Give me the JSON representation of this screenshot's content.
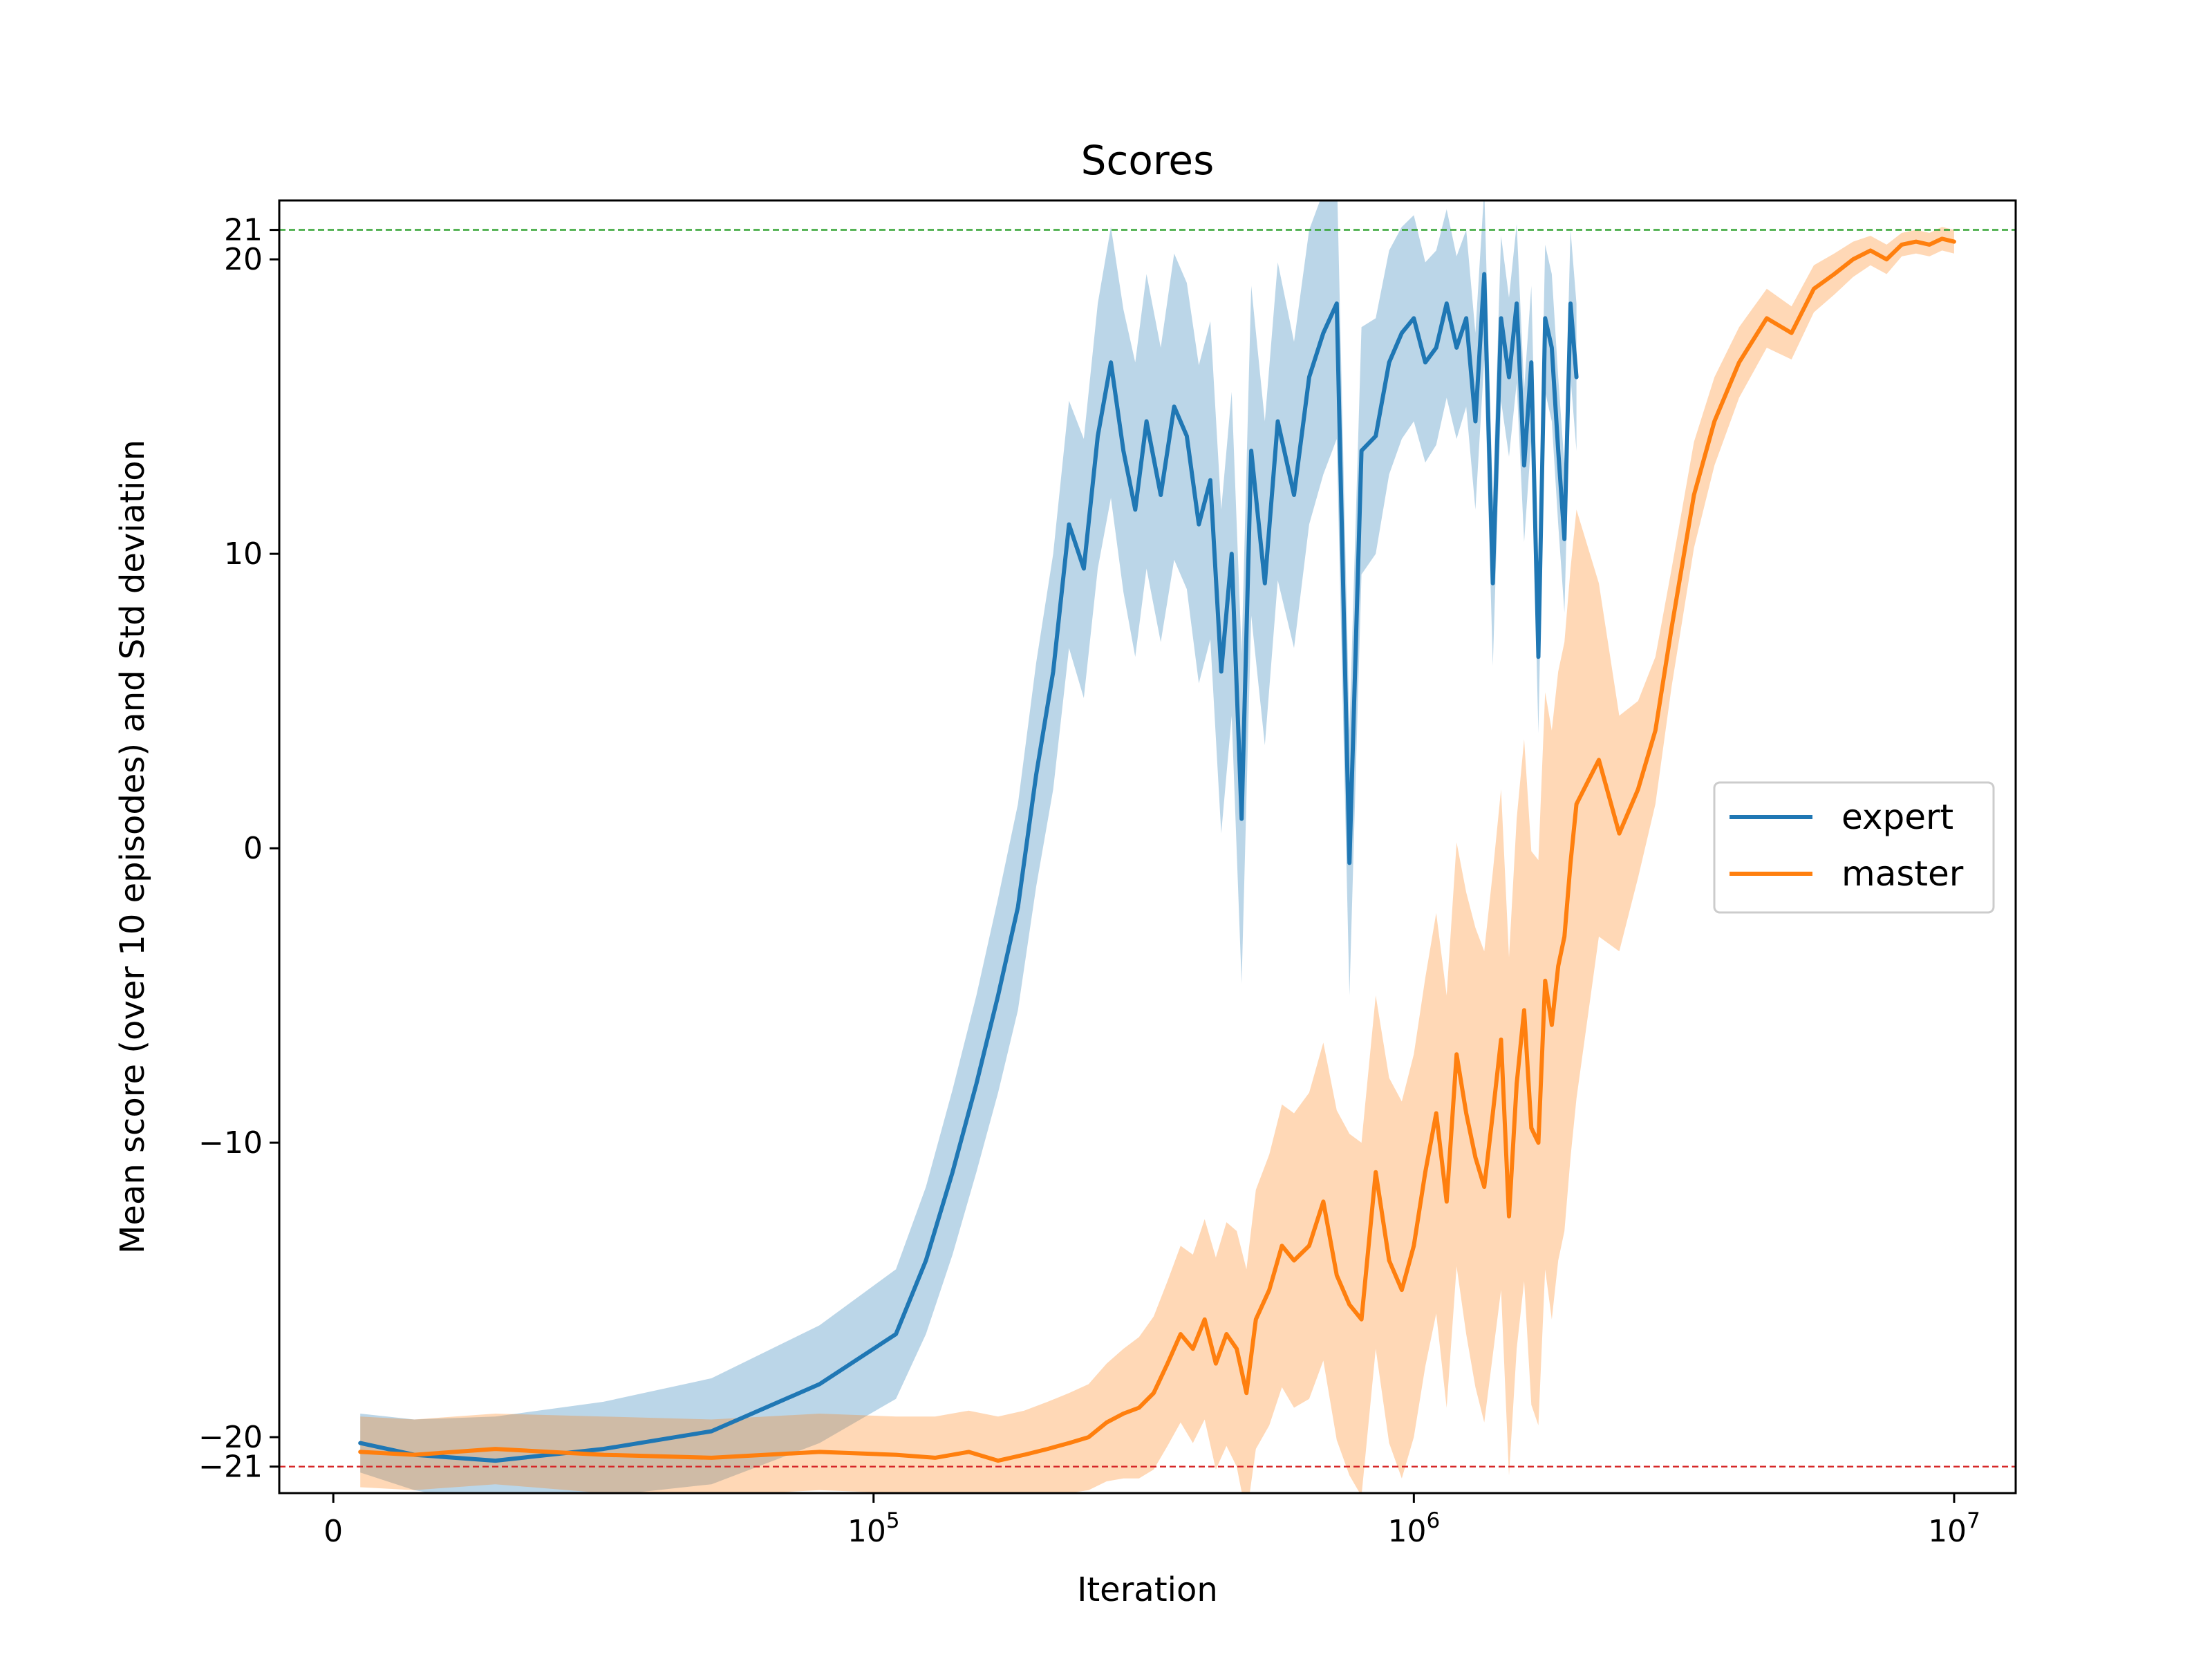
{
  "chart_data": {
    "type": "line",
    "title": "Scores",
    "xlabel": "Iteration",
    "ylabel": "Mean score (over 10 episodes) and Std deviation",
    "x_scale": "symlog",
    "x_scale_linear_threshold": 100000,
    "xlim": [
      -10000,
      13000000
    ],
    "ylim": [
      -21.9,
      22.0
    ],
    "x_ticks": [
      {
        "value": 0,
        "base": "0",
        "exp": ""
      },
      {
        "value": 100000,
        "base": "10",
        "exp": "5"
      },
      {
        "value": 1000000,
        "base": "10",
        "exp": "6"
      },
      {
        "value": 10000000,
        "base": "10",
        "exp": "7"
      }
    ],
    "y_ticks": [
      {
        "value": -21,
        "label": "−21"
      },
      {
        "value": -20,
        "label": "−20"
      },
      {
        "value": -10,
        "label": "−10"
      },
      {
        "value": 0,
        "label": "0"
      },
      {
        "value": 10,
        "label": "10"
      },
      {
        "value": 20,
        "label": "20"
      },
      {
        "value": 21,
        "label": "21"
      }
    ],
    "reference_lines": [
      {
        "y": 21,
        "color": "#2ca02c",
        "style": "dashed"
      },
      {
        "y": -21,
        "color": "#d62728",
        "style": "dashed"
      }
    ],
    "legend_position": "center-right",
    "grid": false,
    "series": [
      {
        "name": "expert",
        "color": "#1f77b4",
        "x": [
          5000,
          15000,
          30000,
          50000,
          70000,
          90000,
          110000,
          125000,
          140000,
          155000,
          170000,
          185000,
          200000,
          215000,
          230000,
          245000,
          260000,
          275000,
          290000,
          305000,
          320000,
          340000,
          360000,
          380000,
          400000,
          420000,
          440000,
          460000,
          480000,
          500000,
          530000,
          560000,
          600000,
          640000,
          680000,
          720000,
          760000,
          800000,
          850000,
          900000,
          950000,
          1000000,
          1050000,
          1100000,
          1150000,
          1200000,
          1250000,
          1300000,
          1350000,
          1400000,
          1450000,
          1500000,
          1550000,
          1600000,
          1650000,
          1700000,
          1750000,
          1800000,
          1850000,
          1900000,
          1950000,
          2000000
        ],
        "y": [
          -20.2,
          -20.6,
          -20.8,
          -20.4,
          -19.8,
          -18.2,
          -16.5,
          -14.0,
          -11.0,
          -8.0,
          -5.0,
          -2.0,
          2.5,
          6.0,
          11.0,
          9.5,
          14.0,
          16.5,
          13.5,
          11.5,
          14.5,
          12.0,
          15.0,
          14.0,
          11.0,
          12.5,
          6.0,
          10.0,
          1.0,
          13.5,
          9.0,
          14.5,
          12.0,
          16.0,
          17.5,
          18.5,
          -0.5,
          13.5,
          14.0,
          16.5,
          17.5,
          18.0,
          16.5,
          17.0,
          18.5,
          17.0,
          18.0,
          14.5,
          19.5,
          9.0,
          18.0,
          16.0,
          18.5,
          13.0,
          16.5,
          6.5,
          18.0,
          17.0,
          13.5,
          10.5,
          18.5,
          16.0
        ],
        "std": [
          1.0,
          1.2,
          1.5,
          1.6,
          1.8,
          2.0,
          2.2,
          2.5,
          2.8,
          3.0,
          3.3,
          3.5,
          3.8,
          4.0,
          4.2,
          4.4,
          4.5,
          4.6,
          4.8,
          5.0,
          5.0,
          5.0,
          5.2,
          5.2,
          5.4,
          5.4,
          5.5,
          5.5,
          5.6,
          5.6,
          5.5,
          5.4,
          5.2,
          5.0,
          4.8,
          4.6,
          4.5,
          4.2,
          4.0,
          3.8,
          3.6,
          3.5,
          3.4,
          3.3,
          3.2,
          3.1,
          3.0,
          3.0,
          2.9,
          2.8,
          2.8,
          2.7,
          2.7,
          2.6,
          2.6,
          2.6,
          2.5,
          2.5,
          2.5,
          2.5,
          2.5,
          2.5
        ]
      },
      {
        "name": "master",
        "color": "#ff7f0e",
        "x": [
          5000,
          15000,
          30000,
          50000,
          70000,
          90000,
          110000,
          130000,
          150000,
          170000,
          190000,
          210000,
          230000,
          250000,
          270000,
          290000,
          310000,
          330000,
          350000,
          370000,
          390000,
          410000,
          430000,
          450000,
          470000,
          490000,
          510000,
          540000,
          570000,
          600000,
          640000,
          680000,
          720000,
          760000,
          800000,
          850000,
          900000,
          950000,
          1000000,
          1050000,
          1100000,
          1150000,
          1200000,
          1250000,
          1300000,
          1350000,
          1400000,
          1450000,
          1500000,
          1550000,
          1600000,
          1650000,
          1700000,
          1750000,
          1800000,
          1850000,
          1900000,
          1950000,
          2000000,
          2200000,
          2400000,
          2600000,
          2800000,
          3000000,
          3300000,
          3600000,
          4000000,
          4500000,
          5000000,
          5500000,
          6000000,
          6500000,
          7000000,
          7500000,
          8000000,
          8500000,
          9000000,
          9500000,
          10000000
        ],
        "y": [
          -20.5,
          -20.6,
          -20.4,
          -20.6,
          -20.7,
          -20.5,
          -20.6,
          -20.7,
          -20.5,
          -20.8,
          -20.6,
          -20.4,
          -20.2,
          -20.0,
          -19.5,
          -19.2,
          -19.0,
          -18.5,
          -17.5,
          -16.5,
          -17.0,
          -16.0,
          -17.5,
          -16.5,
          -17.0,
          -18.5,
          -16.0,
          -15.0,
          -13.5,
          -14.0,
          -13.5,
          -12.0,
          -14.5,
          -15.5,
          -16.0,
          -11.0,
          -14.0,
          -15.0,
          -13.5,
          -11.0,
          -9.0,
          -12.0,
          -7.0,
          -9.0,
          -10.5,
          -11.5,
          -9.0,
          -6.5,
          -12.5,
          -8.0,
          -5.5,
          -9.5,
          -10.0,
          -4.5,
          -6.0,
          -4.0,
          -3.0,
          -0.5,
          1.5,
          3.0,
          0.5,
          2.0,
          4.0,
          7.5,
          12.0,
          14.5,
          16.5,
          18.0,
          17.5,
          19.0,
          19.5,
          20.0,
          20.3,
          20.0,
          20.5,
          20.6,
          20.5,
          20.7,
          20.6
        ],
        "std": [
          1.2,
          1.2,
          1.2,
          1.3,
          1.3,
          1.3,
          1.3,
          1.4,
          1.4,
          1.5,
          1.5,
          1.6,
          1.7,
          1.8,
          2.0,
          2.2,
          2.4,
          2.6,
          2.8,
          3.0,
          3.2,
          3.4,
          3.6,
          3.8,
          4.0,
          4.2,
          4.4,
          4.6,
          4.8,
          5.0,
          5.2,
          5.4,
          5.6,
          5.8,
          6.0,
          6.0,
          6.2,
          6.4,
          6.5,
          6.6,
          6.8,
          7.0,
          7.2,
          7.5,
          7.8,
          8.0,
          8.2,
          8.5,
          8.8,
          9.0,
          9.2,
          9.4,
          9.6,
          9.8,
          10.0,
          10.0,
          10.0,
          10.0,
          10.0,
          6.0,
          4.0,
          3.0,
          2.5,
          2.0,
          1.8,
          1.5,
          1.2,
          1.0,
          0.9,
          0.8,
          0.7,
          0.6,
          0.5,
          0.5,
          0.4,
          0.4,
          0.4,
          0.4,
          0.4
        ]
      }
    ]
  }
}
